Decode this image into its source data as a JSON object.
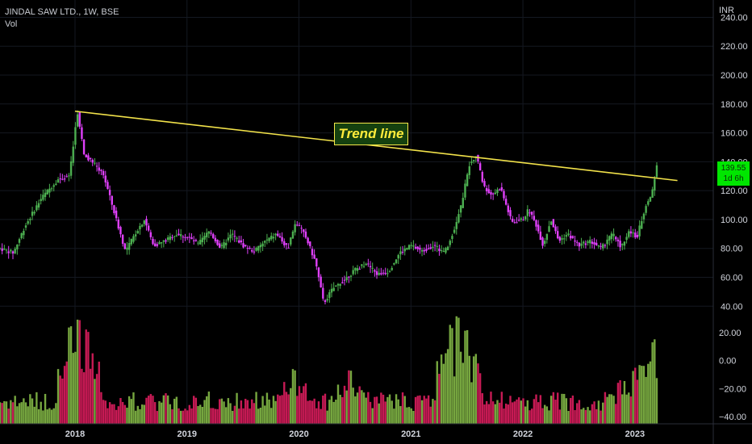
{
  "chart_data": {
    "type": "candlestick",
    "title": "JINDAL SAW LTD., 1W, BSE",
    "volume_label": "Vol",
    "currency": "INR",
    "price_axis_ticks": [
      240,
      220,
      200,
      180,
      160,
      140,
      120,
      100,
      80,
      60,
      40
    ],
    "volume_axis_ticks": [
      20,
      0,
      -20,
      -40
    ],
    "x_ticks": [
      "2018",
      "2019",
      "2020",
      "2021",
      "2022",
      "2023"
    ],
    "x_range": [
      2017.33,
      2023.7
    ],
    "price_range": [
      34,
      252
    ],
    "last_price": "139.55",
    "countdown": "1d 6h",
    "trendline": {
      "start": {
        "x": 2018.0,
        "price": 175
      },
      "end": {
        "x": 2023.38,
        "price": 127
      }
    },
    "annotation": "Trend line",
    "price_path": [
      [
        2017.33,
        80
      ],
      [
        2017.45,
        77
      ],
      [
        2017.55,
        95
      ],
      [
        2017.7,
        115
      ],
      [
        2017.85,
        128
      ],
      [
        2017.95,
        130
      ],
      [
        2018.02,
        175
      ],
      [
        2018.08,
        145
      ],
      [
        2018.15,
        140
      ],
      [
        2018.25,
        132
      ],
      [
        2018.35,
        105
      ],
      [
        2018.45,
        78
      ],
      [
        2018.55,
        92
      ],
      [
        2018.62,
        100
      ],
      [
        2018.7,
        82
      ],
      [
        2018.8,
        85
      ],
      [
        2018.9,
        90
      ],
      [
        2019.0,
        88
      ],
      [
        2019.1,
        83
      ],
      [
        2019.2,
        92
      ],
      [
        2019.3,
        80
      ],
      [
        2019.4,
        90
      ],
      [
        2019.5,
        82
      ],
      [
        2019.6,
        78
      ],
      [
        2019.7,
        85
      ],
      [
        2019.8,
        90
      ],
      [
        2019.9,
        80
      ],
      [
        2019.97,
        98
      ],
      [
        2020.05,
        90
      ],
      [
        2020.15,
        70
      ],
      [
        2020.22,
        42
      ],
      [
        2020.3,
        52
      ],
      [
        2020.4,
        58
      ],
      [
        2020.5,
        65
      ],
      [
        2020.6,
        70
      ],
      [
        2020.7,
        62
      ],
      [
        2020.8,
        64
      ],
      [
        2020.9,
        77
      ],
      [
        2021.0,
        82
      ],
      [
        2021.1,
        78
      ],
      [
        2021.2,
        82
      ],
      [
        2021.3,
        77
      ],
      [
        2021.38,
        92
      ],
      [
        2021.45,
        110
      ],
      [
        2021.52,
        138
      ],
      [
        2021.58,
        145
      ],
      [
        2021.65,
        123
      ],
      [
        2021.72,
        117
      ],
      [
        2021.8,
        122
      ],
      [
        2021.9,
        98
      ],
      [
        2022.0,
        100
      ],
      [
        2022.05,
        107
      ],
      [
        2022.12,
        96
      ],
      [
        2022.18,
        82
      ],
      [
        2022.25,
        100
      ],
      [
        2022.32,
        85
      ],
      [
        2022.4,
        90
      ],
      [
        2022.5,
        82
      ],
      [
        2022.6,
        85
      ],
      [
        2022.7,
        80
      ],
      [
        2022.8,
        90
      ],
      [
        2022.88,
        81
      ],
      [
        2022.95,
        92
      ],
      [
        2023.02,
        88
      ],
      [
        2023.05,
        97
      ],
      [
        2023.1,
        110
      ],
      [
        2023.15,
        118
      ],
      [
        2023.2,
        139.55
      ]
    ],
    "volume_peaks": [
      {
        "x": 2017.95,
        "value": 24
      },
      {
        "x": 2018.03,
        "value": 30
      },
      {
        "x": 2018.1,
        "value": 22
      },
      {
        "x": 2019.95,
        "value": -6
      },
      {
        "x": 2020.45,
        "value": -8
      },
      {
        "x": 2021.35,
        "value": 25
      },
      {
        "x": 2021.42,
        "value": 30
      },
      {
        "x": 2021.5,
        "value": 22
      },
      {
        "x": 2022.85,
        "value": -16
      },
      {
        "x": 2023.0,
        "value": -6
      },
      {
        "x": 2023.06,
        "value": -4
      },
      {
        "x": 2023.14,
        "value": -2
      },
      {
        "x": 2023.16,
        "value": 14
      },
      {
        "x": 2023.18,
        "value": -16
      }
    ],
    "up_color": "#4caf50",
    "down_color": "#e040fb",
    "vol_up_color": "#8bc34a",
    "vol_down_color": "#e91e63",
    "trendline_color": "#f2e24a",
    "background": "#000000",
    "grid": true
  }
}
